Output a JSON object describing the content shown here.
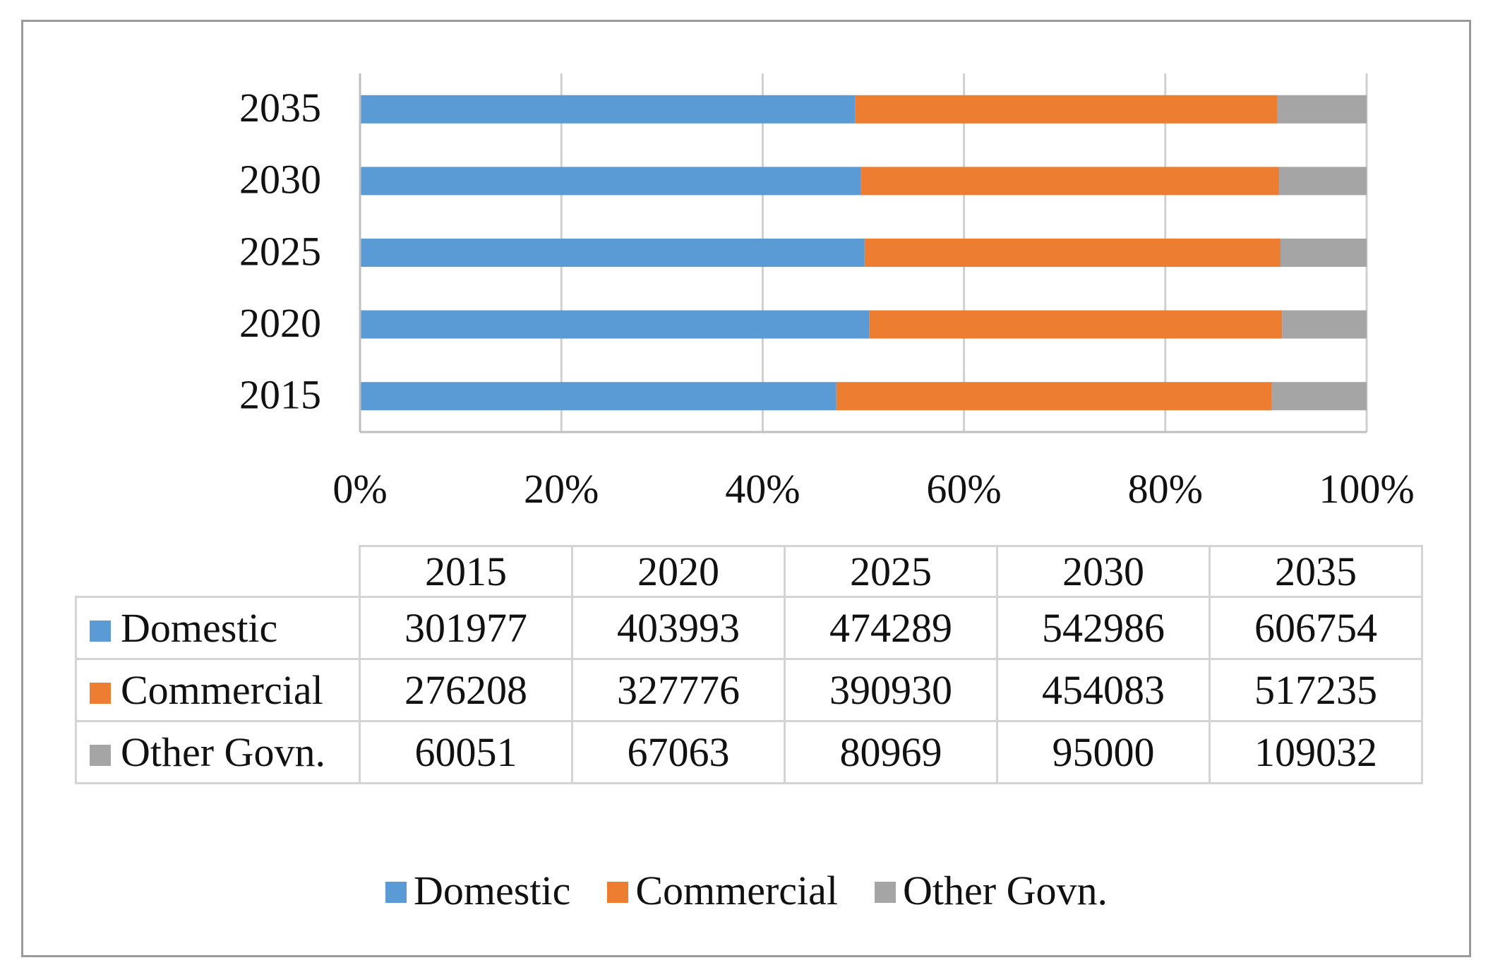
{
  "chart_data": {
    "type": "bar",
    "orientation": "horizontal",
    "stacked": "percent",
    "categories": [
      "2015",
      "2020",
      "2025",
      "2030",
      "2035"
    ],
    "series": [
      {
        "name": "Domestic",
        "color": "#5b9bd5",
        "values": [
          301977,
          403993,
          474289,
          542986,
          606754
        ]
      },
      {
        "name": "Commercial",
        "color": "#ed7d31",
        "values": [
          276208,
          327776,
          390930,
          454083,
          517235
        ]
      },
      {
        "name": "Other Govn.",
        "color": "#a5a5a5",
        "values": [
          60051,
          67063,
          80969,
          95000,
          109032
        ]
      }
    ],
    "xticks": [
      "0%",
      "20%",
      "40%",
      "60%",
      "80%",
      "100%"
    ],
    "xlim": [
      0,
      100
    ],
    "grid": true,
    "legend_position": "bottom",
    "data_table": true
  }
}
